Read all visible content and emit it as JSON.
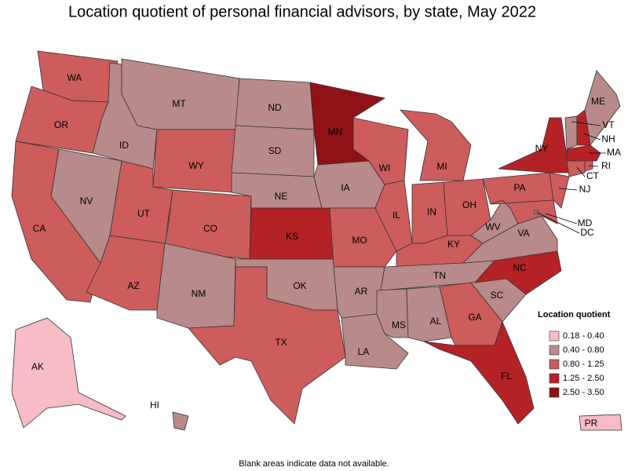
{
  "title": "Location quotient of personal financial advisors, by state, May 2022",
  "legend": {
    "title": "Location quotient",
    "items": [
      {
        "label": "0.18 - 0.40",
        "color": "#f7bcc4"
      },
      {
        "label": "0.40 - 0.80",
        "color": "#b98a8a"
      },
      {
        "label": "0.80 - 1.25",
        "color": "#cd5c5c"
      },
      {
        "label": "1.25 - 2.50",
        "color": "#b52226"
      },
      {
        "label": "2.50 - 3.50",
        "color": "#8f1217"
      }
    ]
  },
  "states": [
    {
      "label": "WA",
      "color": "#cd5c5c"
    },
    {
      "label": "OR",
      "color": "#cd5c5c"
    },
    {
      "label": "CA",
      "color": "#cd5c5c"
    },
    {
      "label": "NV",
      "color": "#b98a8a"
    },
    {
      "label": "ID",
      "color": "#b98a8a"
    },
    {
      "label": "MT",
      "color": "#b98a8a"
    },
    {
      "label": "WY",
      "color": "#cd5c5c"
    },
    {
      "label": "UT",
      "color": "#cd5c5c"
    },
    {
      "label": "AZ",
      "color": "#cd5c5c"
    },
    {
      "label": "CO",
      "color": "#cd5c5c"
    },
    {
      "label": "NM",
      "color": "#b98a8a"
    },
    {
      "label": "ND",
      "color": "#b98a8a"
    },
    {
      "label": "SD",
      "color": "#b98a8a"
    },
    {
      "label": "NE",
      "color": "#b98a8a"
    },
    {
      "label": "KS",
      "color": "#b52226"
    },
    {
      "label": "OK",
      "color": "#b98a8a"
    },
    {
      "label": "TX",
      "color": "#cd5c5c"
    },
    {
      "label": "MN",
      "color": "#8f1217"
    },
    {
      "label": "IA",
      "color": "#b98a8a"
    },
    {
      "label": "MO",
      "color": "#cd5c5c"
    },
    {
      "label": "AR",
      "color": "#b98a8a"
    },
    {
      "label": "LA",
      "color": "#b98a8a"
    },
    {
      "label": "WI",
      "color": "#cd5c5c"
    },
    {
      "label": "IL",
      "color": "#cd5c5c"
    },
    {
      "label": "MI",
      "color": "#cd5c5c"
    },
    {
      "label": "IN",
      "color": "#cd5c5c"
    },
    {
      "label": "OH",
      "color": "#cd5c5c"
    },
    {
      "label": "KY",
      "color": "#cd5c5c"
    },
    {
      "label": "TN",
      "color": "#b98a8a"
    },
    {
      "label": "MS",
      "color": "#b98a8a"
    },
    {
      "label": "AL",
      "color": "#b98a8a"
    },
    {
      "label": "GA",
      "color": "#cd5c5c"
    },
    {
      "label": "FL",
      "color": "#b52226"
    },
    {
      "label": "SC",
      "color": "#b98a8a"
    },
    {
      "label": "NC",
      "color": "#b52226"
    },
    {
      "label": "VA",
      "color": "#b98a8a"
    },
    {
      "label": "WV",
      "color": "#b98a8a"
    },
    {
      "label": "PA",
      "color": "#cd5c5c"
    },
    {
      "label": "NY",
      "color": "#b52226"
    },
    {
      "label": "NJ",
      "color": "#cd5c5c"
    },
    {
      "label": "MD",
      "color": "#cd5c5c"
    },
    {
      "label": "DC",
      "color": "#b98a8a"
    },
    {
      "label": "VT",
      "color": "#b98a8a"
    },
    {
      "label": "NH",
      "color": "#b52226"
    },
    {
      "label": "ME",
      "color": "#b98a8a"
    },
    {
      "label": "MA",
      "color": "#b52226"
    },
    {
      "label": "CT",
      "color": "#cd5c5c"
    },
    {
      "label": "RI",
      "color": "#cd5c5c"
    },
    {
      "label": "AK",
      "color": "#f7bcc4"
    },
    {
      "label": "HI",
      "color": "#b98a8a"
    },
    {
      "label": "PR",
      "color": "#f7bcc4"
    }
  ],
  "footnote": "Blank areas indicate data not available."
}
